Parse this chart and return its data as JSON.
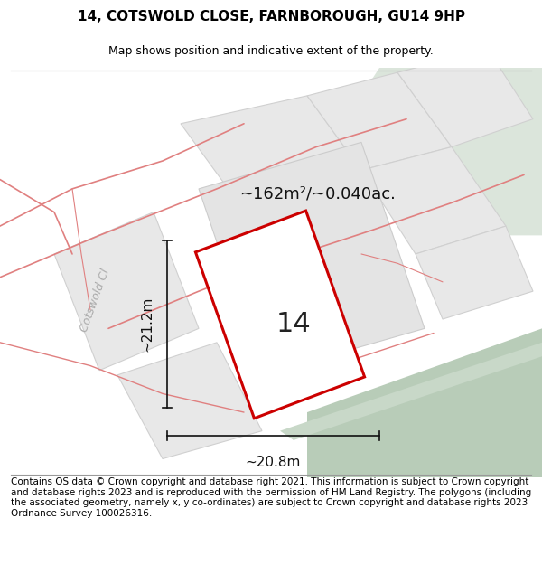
{
  "title": "14, COTSWOLD CLOSE, FARNBOROUGH, GU14 9HP",
  "subtitle": "Map shows position and indicative extent of the property.",
  "area_text": "~162m²/~0.040ac.",
  "dim_width": "~20.8m",
  "dim_height": "~21.2m",
  "plot_number": "14",
  "footer_text": "Contains OS data © Crown copyright and database right 2021. This information is subject to Crown copyright and database rights 2023 and is reproduced with the permission of HM Land Registry. The polygons (including the associated geometry, namely x, y co-ordinates) are subject to Crown copyright and database rights 2023 Ordnance Survey 100026316.",
  "bg_color": "#f5f5f5",
  "map_bg": "#f8f8f8",
  "road_fill": "#ccd9cc",
  "plot_outline_color": "#cc0000",
  "neighbor_fill": "#e0e0e0",
  "neighbor_outline": "#cccccc",
  "road_stripe_color": "#b8ccb8",
  "street_label_color": "#aaaaaa",
  "street_label": "Cotswold Cl",
  "title_fontsize": 11,
  "subtitle_fontsize": 9,
  "footer_fontsize": 7.5
}
